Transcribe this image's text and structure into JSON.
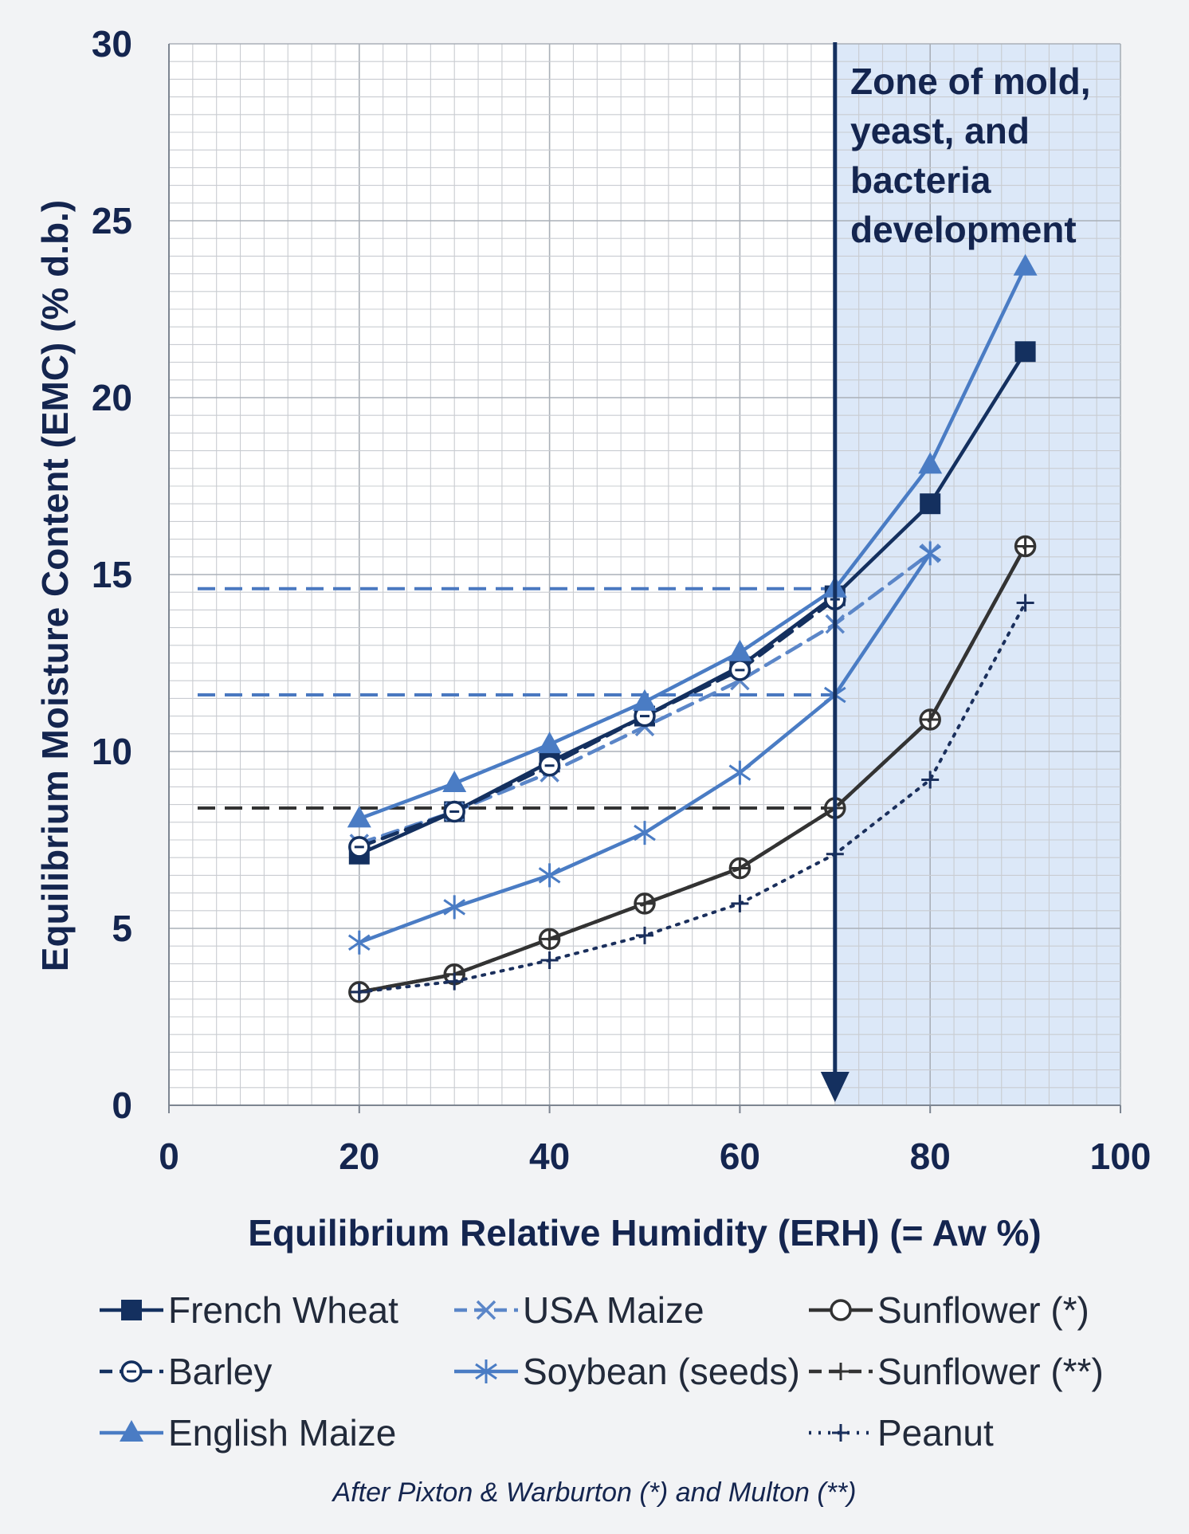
{
  "chart_data": {
    "type": "line",
    "xlabel": "Equilibrium Relative Humidity (ERH) (= Aw %)",
    "ylabel": "Equilibrium Moisture Content (EMC) (% d.b.)",
    "xlim": [
      0,
      100
    ],
    "ylim": [
      0,
      30
    ],
    "x_ticks": [
      "0",
      "20",
      "40",
      "60",
      "80",
      "100"
    ],
    "y_ticks": [
      "0",
      "5",
      "10",
      "15",
      "20",
      "25",
      "30"
    ],
    "grid": true,
    "legend_position": "bottom",
    "zone": {
      "label_lines": [
        "Zone of mold,",
        "yeast, and",
        "bacteria",
        "development"
      ],
      "x_start": 70,
      "x_end": 100,
      "fill": "#dce8f8",
      "line_color": "#14305f"
    },
    "reference_lines": [
      {
        "y": 14.6,
        "x_end": 70,
        "color": "#4a78c0"
      },
      {
        "y": 11.6,
        "x_end": 70,
        "color": "#4a78c0"
      },
      {
        "y": 8.4,
        "x_end": 70,
        "color": "#333333"
      }
    ],
    "series": [
      {
        "name": "French Wheat",
        "x": [
          20,
          30,
          40,
          50,
          60,
          70,
          80,
          90
        ],
        "y": [
          7.1,
          8.3,
          9.7,
          11.0,
          12.4,
          14.4,
          17.0,
          21.3
        ],
        "color": "#14305f",
        "dash": "solid",
        "marker": "square"
      },
      {
        "name": "USA Maize",
        "x": [
          20,
          30,
          40,
          50,
          60,
          70,
          80
        ],
        "y": [
          7.4,
          8.3,
          9.4,
          10.7,
          12.0,
          13.6,
          15.6
        ],
        "color": "#5b86c8",
        "dash": "dashed",
        "marker": "x"
      },
      {
        "name": "Sunflower (*)",
        "x": [
          20,
          30,
          40,
          50,
          60,
          70,
          80,
          90
        ],
        "y": [
          3.2,
          3.7,
          4.7,
          5.7,
          6.7,
          8.4,
          10.9,
          15.8
        ],
        "color": "#333333",
        "dash": "solid",
        "marker": "circle"
      },
      {
        "name": "Barley",
        "x": [
          20,
          30,
          40,
          50,
          60,
          70
        ],
        "y": [
          7.3,
          8.3,
          9.6,
          11.0,
          12.3,
          14.3
        ],
        "color": "#14305f",
        "dash": "dashed",
        "marker": "circle-dot"
      },
      {
        "name": "Soybean (seeds)",
        "x": [
          20,
          30,
          40,
          50,
          60,
          70,
          80
        ],
        "y": [
          4.6,
          5.6,
          6.5,
          7.7,
          9.4,
          11.6,
          15.6
        ],
        "color": "#4a7cc4",
        "dash": "solid",
        "marker": "star"
      },
      {
        "name": "Sunflower (**)",
        "x": [
          20,
          30,
          40,
          50,
          60,
          70,
          80,
          90
        ],
        "y": [
          3.2,
          3.7,
          4.7,
          5.7,
          6.7,
          8.4,
          10.9,
          15.8
        ],
        "color": "#333333",
        "dash": "dashed",
        "marker": "plus"
      },
      {
        "name": "English Maize",
        "x": [
          20,
          30,
          40,
          50,
          60,
          70,
          80,
          90
        ],
        "y": [
          8.1,
          9.1,
          10.2,
          11.4,
          12.8,
          14.6,
          18.1,
          23.7
        ],
        "color": "#4a7cc4",
        "dash": "solid",
        "marker": "triangle"
      },
      {
        "name": "Peanut",
        "x": [
          20,
          30,
          40,
          50,
          60,
          70,
          80,
          90
        ],
        "y": [
          3.2,
          3.5,
          4.1,
          4.8,
          5.7,
          7.1,
          9.2,
          14.2
        ],
        "color": "#1a2f5c",
        "dash": "dotted",
        "marker": "plus"
      }
    ],
    "legend_layout": [
      [
        "French Wheat",
        "USA Maize",
        "Sunflower (*)"
      ],
      [
        "Barley",
        "Soybean (seeds)",
        "Sunflower (**)"
      ],
      [
        "English Maize",
        null,
        "Peanut"
      ]
    ],
    "credit": "After Pixton & Warburton (*) and Multon (**)"
  }
}
